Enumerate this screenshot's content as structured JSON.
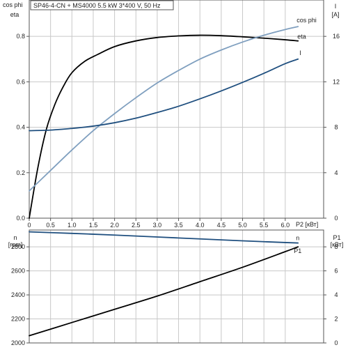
{
  "title_box": {
    "text": "SP46-4-CN + MS4000   5.5 kW   3*400 V, 50 Hz"
  },
  "colors": {
    "eta": "#000000",
    "cos_phi": "#7f9fbf",
    "current": "#1f4f7f",
    "n": "#1f4f7f",
    "p1": "#000000",
    "grid": "#c8c8c8"
  },
  "top_axes": {
    "left_label_1": "cos phi",
    "left_label_2": "eta",
    "right_label_1": "I",
    "right_label_2": "[A]",
    "x_label": "P2 [кВт]"
  },
  "bottom_axes": {
    "left_label_1": "n",
    "left_label_2": "[rpm]",
    "right_label_1": "P1",
    "right_label_2": "[кВт]"
  },
  "chart_data": [
    {
      "type": "line",
      "x_ticks": [
        "0",
        "0.5",
        "1.0",
        "1.5",
        "2.0",
        "2.5",
        "3.0",
        "3.5",
        "4.0",
        "4.5",
        "5.0",
        "5.5",
        "6.0"
      ],
      "y_left_ticks": [
        "0.0",
        "0.2",
        "0.4",
        "0.6",
        "0.8"
      ],
      "y_right_ticks": [
        "0",
        "4",
        "8",
        "12",
        "16"
      ],
      "xlim": [
        0,
        6.9
      ],
      "ylim_left": [
        0,
        0.96
      ],
      "ylim_right": [
        0,
        19.2
      ],
      "grid": true,
      "series": [
        {
          "name": "eta",
          "axis": "left",
          "x": [
            0,
            0.2,
            0.4,
            0.6,
            0.8,
            1.0,
            1.3,
            1.6,
            2.0,
            2.5,
            3.0,
            3.5,
            4.0,
            4.5,
            5.0,
            5.5,
            6.0,
            6.3
          ],
          "y": [
            0.0,
            0.22,
            0.39,
            0.5,
            0.58,
            0.64,
            0.69,
            0.72,
            0.755,
            0.78,
            0.795,
            0.802,
            0.805,
            0.803,
            0.798,
            0.792,
            0.785,
            0.78
          ]
        },
        {
          "name": "cos phi",
          "axis": "left",
          "x": [
            0,
            0.5,
            1.0,
            1.5,
            2.0,
            2.5,
            3.0,
            3.5,
            4.0,
            4.5,
            5.0,
            5.5,
            6.0,
            6.3
          ],
          "y": [
            0.12,
            0.21,
            0.3,
            0.385,
            0.46,
            0.53,
            0.595,
            0.65,
            0.7,
            0.74,
            0.775,
            0.805,
            0.83,
            0.843
          ]
        },
        {
          "name": "I",
          "axis": "right",
          "x": [
            0,
            0.5,
            1.0,
            1.5,
            2.0,
            2.5,
            3.0,
            3.5,
            4.0,
            4.5,
            5.0,
            5.5,
            6.0,
            6.3
          ],
          "y": [
            7.7,
            7.75,
            7.9,
            8.1,
            8.4,
            8.8,
            9.3,
            9.85,
            10.5,
            11.2,
            11.95,
            12.75,
            13.6,
            14.0
          ]
        }
      ]
    },
    {
      "type": "line",
      "y_left_ticks": [
        "2000",
        "2200",
        "2400",
        "2600",
        "2800"
      ],
      "y_right_ticks": [
        "0",
        "2",
        "4",
        "6",
        "8"
      ],
      "xlim": [
        0,
        6.9
      ],
      "ylim_left": [
        2000,
        2940
      ],
      "ylim_right": [
        0,
        9.4
      ],
      "grid": true,
      "series": [
        {
          "name": "n",
          "axis": "left",
          "x": [
            0,
            1.0,
            2.0,
            3.0,
            4.0,
            5.0,
            6.0,
            6.3
          ],
          "y": [
            2925,
            2912,
            2898,
            2882,
            2866,
            2850,
            2836,
            2832
          ]
        },
        {
          "name": "P1",
          "axis": "right",
          "x": [
            0,
            1.0,
            2.0,
            3.0,
            4.0,
            5.0,
            6.0,
            6.3
          ],
          "y": [
            0.6,
            1.7,
            2.8,
            3.9,
            5.1,
            6.3,
            7.6,
            8.0
          ]
        }
      ]
    }
  ]
}
